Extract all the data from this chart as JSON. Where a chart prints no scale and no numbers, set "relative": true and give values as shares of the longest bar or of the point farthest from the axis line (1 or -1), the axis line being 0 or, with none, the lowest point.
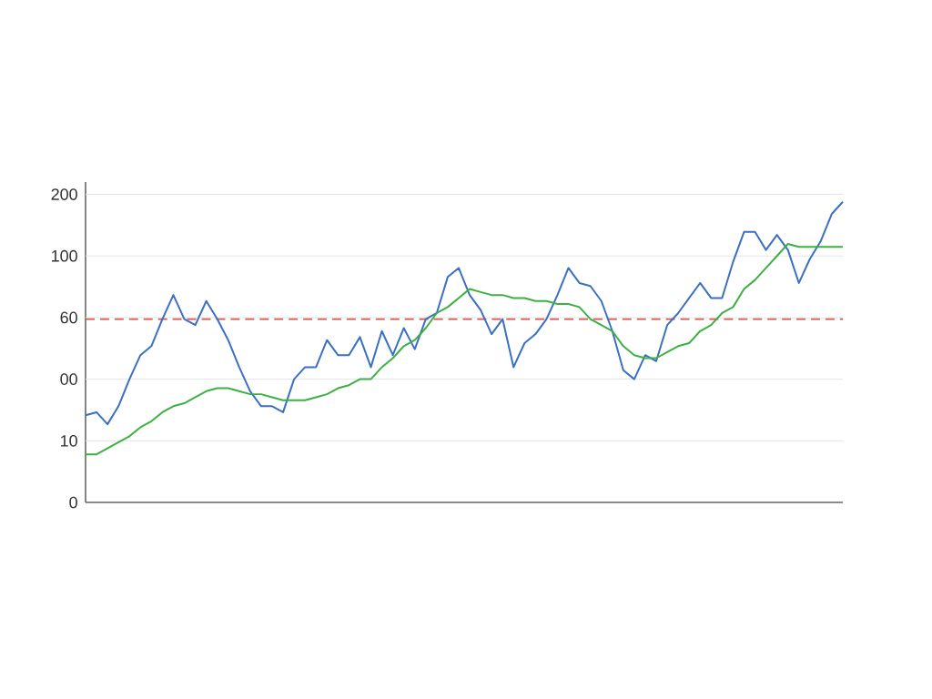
{
  "chart_data": {
    "type": "line",
    "relative": true,
    "grid": "y",
    "marker": "none",
    "line_style": "solid",
    "categories": [
      null,
      null,
      null,
      null,
      null,
      null,
      null,
      null,
      null,
      null,
      null,
      null,
      null,
      null,
      null,
      null,
      null,
      null,
      null,
      null,
      null,
      null,
      null,
      null,
      null,
      null,
      null,
      null,
      null,
      null,
      null,
      null,
      null,
      null,
      null,
      null,
      null,
      null,
      null,
      null,
      null,
      null,
      null,
      null,
      null,
      null,
      null,
      null,
      null,
      null,
      null,
      null,
      null,
      null,
      null,
      null,
      null,
      null,
      null,
      null,
      null,
      null,
      null,
      null,
      null,
      null,
      null,
      null,
      null,
      null
    ],
    "annotations": [
      "0",
      "10",
      "00",
      "60",
      "100",
      "200"
    ],
    "series": [
      {
        "color": "#3a6fc4",
        "values": [
          0.29,
          0.3,
          0.26,
          0.32,
          0.41,
          0.49,
          0.52,
          0.61,
          0.69,
          0.61,
          0.59,
          0.67,
          0.61,
          0.54,
          0.45,
          0.37,
          0.32,
          0.32,
          0.3,
          0.41,
          0.45,
          0.45,
          0.54,
          0.49,
          0.49,
          0.55,
          0.45,
          0.57,
          0.49,
          0.58,
          0.51,
          0.61,
          0.63,
          0.75,
          0.78,
          0.69,
          0.64,
          0.56,
          0.61,
          0.45,
          0.53,
          0.56,
          0.61,
          0.69,
          0.78,
          0.73,
          0.72,
          0.67,
          0.57,
          0.44,
          0.41,
          0.49,
          0.47,
          0.59,
          0.63,
          0.68,
          0.73,
          0.68,
          0.68,
          0.8,
          0.9,
          0.9,
          0.84,
          0.89,
          0.84,
          0.73,
          0.81,
          0.87,
          0.96,
          1
        ]
      },
      {
        "color": "#3cb043",
        "values": [
          0.16,
          0.16,
          0.18,
          0.2,
          0.22,
          0.25,
          0.27,
          0.3,
          0.32,
          0.33,
          0.35,
          0.37,
          0.38,
          0.38,
          0.37,
          0.36,
          0.36,
          0.35,
          0.34,
          0.34,
          0.34,
          0.35,
          0.36,
          0.38,
          0.39,
          0.41,
          0.41,
          0.45,
          0.48,
          0.52,
          0.54,
          0.58,
          0.63,
          0.65,
          0.68,
          0.71,
          0.7,
          0.69,
          0.69,
          0.68,
          0.68,
          0.67,
          0.67,
          0.66,
          0.66,
          0.65,
          0.61,
          0.59,
          0.57,
          0.52,
          0.49,
          0.48,
          0.48,
          0.5,
          0.52,
          0.53,
          0.57,
          0.59,
          0.63,
          0.65,
          0.71,
          0.74,
          0.78,
          0.82,
          0.86,
          0.85,
          0.85,
          0.85,
          0.85,
          0.85
        ]
      }
    ],
    "ref_lines": [
      {
        "axis": "y",
        "value": 0.61,
        "color": "#d9534f",
        "line_style": "dashed"
      }
    ]
  }
}
